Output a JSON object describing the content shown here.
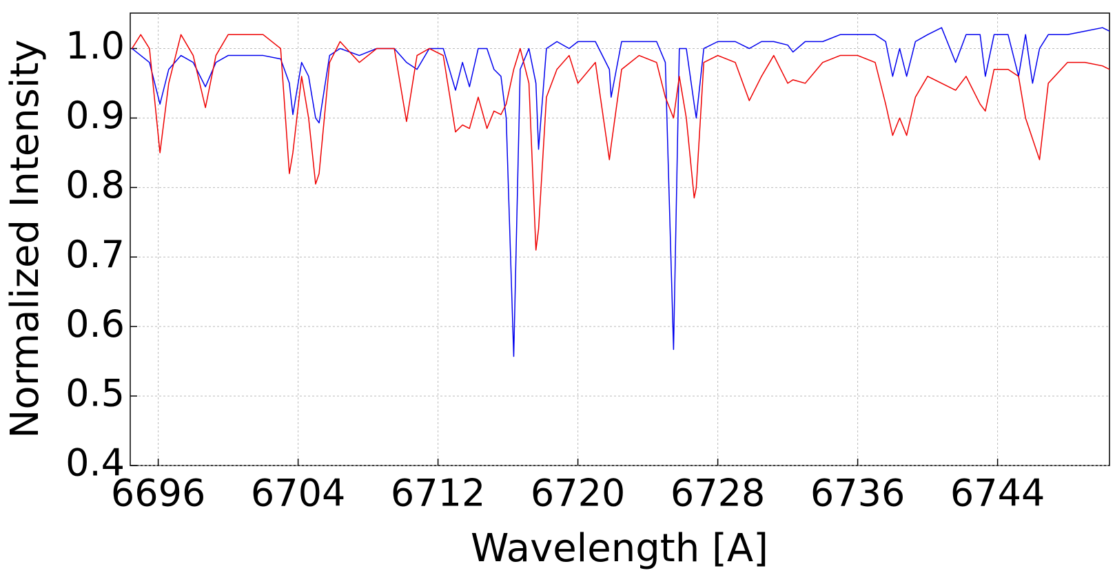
{
  "chart_data": {
    "type": "line",
    "x_label": "Wavelength [A]",
    "y_label": "Normalized Intensity",
    "x": [
      6694.5,
      6695.0,
      6695.5,
      6696.1,
      6696.6,
      6697.3,
      6698.0,
      6698.7,
      6699.3,
      6700.0,
      6701.0,
      6702.0,
      6703.0,
      6703.5,
      6703.7,
      6704.2,
      6704.6,
      6705.0,
      6705.2,
      6705.8,
      6706.4,
      6707.5,
      6708.5,
      6709.5,
      6710.2,
      6710.8,
      6711.5,
      6712.3,
      6713.0,
      6713.4,
      6713.8,
      6714.3,
      6714.8,
      6715.2,
      6715.6,
      6715.9,
      6716.33,
      6716.7,
      6717.2,
      6717.6,
      6717.75,
      6718.2,
      6718.8,
      6719.5,
      6720.0,
      6721.0,
      6721.8,
      6721.9,
      6722.5,
      6723.5,
      6724.5,
      6725.0,
      6725.47,
      6725.8,
      6726.2,
      6726.65,
      6726.77,
      6727.2,
      6728.0,
      6729.0,
      6729.8,
      6730.5,
      6731.2,
      6732.0,
      6732.3,
      6733.0,
      6734.0,
      6735.0,
      6736.0,
      6737.0,
      6737.6,
      6738.0,
      6738.4,
      6738.8,
      6739.3,
      6740.0,
      6740.8,
      6741.6,
      6742.2,
      6743.0,
      6743.3,
      6743.8,
      6744.6,
      6745.2,
      6745.6,
      6746.0,
      6746.4,
      6746.9,
      6748.0,
      6749.0,
      6750.0,
      6750.4
    ],
    "series": [
      {
        "color": "#0000ee",
        "values": [
          1.0,
          0.99,
          0.98,
          0.92,
          0.97,
          0.99,
          0.98,
          0.945,
          0.98,
          0.99,
          0.99,
          0.99,
          0.985,
          0.95,
          0.905,
          0.98,
          0.96,
          0.9,
          0.893,
          0.99,
          1.0,
          0.99,
          1.0,
          1.0,
          0.98,
          0.97,
          1.0,
          1.0,
          0.94,
          0.98,
          0.945,
          1.0,
          1.0,
          0.97,
          0.96,
          0.9,
          0.557,
          0.97,
          1.0,
          0.95,
          0.855,
          1.0,
          1.01,
          1.0,
          1.01,
          1.01,
          0.97,
          0.93,
          1.01,
          1.01,
          1.01,
          0.98,
          0.567,
          1.0,
          1.0,
          0.92,
          0.9,
          1.0,
          1.01,
          1.01,
          1.0,
          1.01,
          1.01,
          1.005,
          0.995,
          1.01,
          1.01,
          1.02,
          1.02,
          1.02,
          1.01,
          0.96,
          1.0,
          0.96,
          1.01,
          1.02,
          1.03,
          0.98,
          1.02,
          1.02,
          0.96,
          1.02,
          1.02,
          0.96,
          1.02,
          0.95,
          1.0,
          1.02,
          1.02,
          1.025,
          1.03,
          1.025
        ]
      },
      {
        "color": "#ee0000",
        "values": [
          1.0,
          1.02,
          1.0,
          0.85,
          0.95,
          1.02,
          0.99,
          0.915,
          0.99,
          1.02,
          1.02,
          1.02,
          1.0,
          0.82,
          0.85,
          0.96,
          0.9,
          0.805,
          0.82,
          0.98,
          1.01,
          0.98,
          1.0,
          1.0,
          0.895,
          0.99,
          1.0,
          0.99,
          0.88,
          0.89,
          0.885,
          0.93,
          0.885,
          0.91,
          0.905,
          0.92,
          0.97,
          1.0,
          0.95,
          0.71,
          0.74,
          0.93,
          0.97,
          0.99,
          0.95,
          0.98,
          0.84,
          0.86,
          0.97,
          0.99,
          0.98,
          0.93,
          0.9,
          0.96,
          0.9,
          0.785,
          0.8,
          0.98,
          0.99,
          0.98,
          0.925,
          0.96,
          0.99,
          0.95,
          0.955,
          0.95,
          0.98,
          0.99,
          0.99,
          0.98,
          0.92,
          0.875,
          0.9,
          0.875,
          0.93,
          0.96,
          0.95,
          0.94,
          0.96,
          0.92,
          0.91,
          0.97,
          0.97,
          0.96,
          0.9,
          0.87,
          0.84,
          0.95,
          0.98,
          0.98,
          0.975,
          0.97
        ]
      }
    ],
    "xlim": [
      6694.4,
      6750.4
    ],
    "xticks": [
      6696,
      6704,
      6712,
      6720,
      6728,
      6736,
      6744
    ],
    "ylim": [
      0.4,
      1.051
    ],
    "yticks": [
      0.4,
      0.5,
      0.6,
      0.7,
      0.8,
      0.9,
      {
        "value": 1.0,
        "label": "1.0"
      }
    ],
    "grid": true
  }
}
